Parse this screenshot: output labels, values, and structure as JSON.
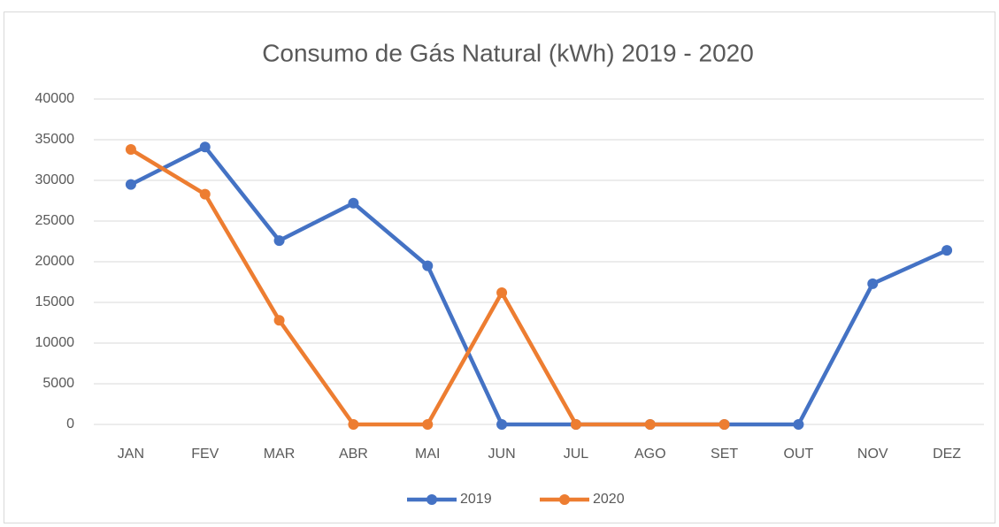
{
  "chart_data": {
    "type": "line",
    "title": "Consumo de Gás Natural (kWh) 2019 - 2020",
    "categories": [
      "JAN",
      "FEV",
      "MAR",
      "ABR",
      "MAI",
      "JUN",
      "JUL",
      "AGO",
      "SET",
      "OUT",
      "NOV",
      "DEZ"
    ],
    "series": [
      {
        "name": "2019",
        "color": "#4472c4",
        "values": [
          29500,
          34100,
          22600,
          27200,
          19500,
          0,
          0,
          0,
          0,
          0,
          17300,
          21400
        ]
      },
      {
        "name": "2020",
        "color": "#ed7d31",
        "values": [
          33800,
          28300,
          12800,
          0,
          0,
          16200,
          0,
          0,
          0,
          null,
          null,
          null
        ]
      }
    ],
    "ylim": [
      0,
      40000
    ],
    "yticks": [
      0,
      5000,
      10000,
      15000,
      20000,
      25000,
      30000,
      35000,
      40000
    ],
    "grid": true,
    "legend": "bottom"
  }
}
